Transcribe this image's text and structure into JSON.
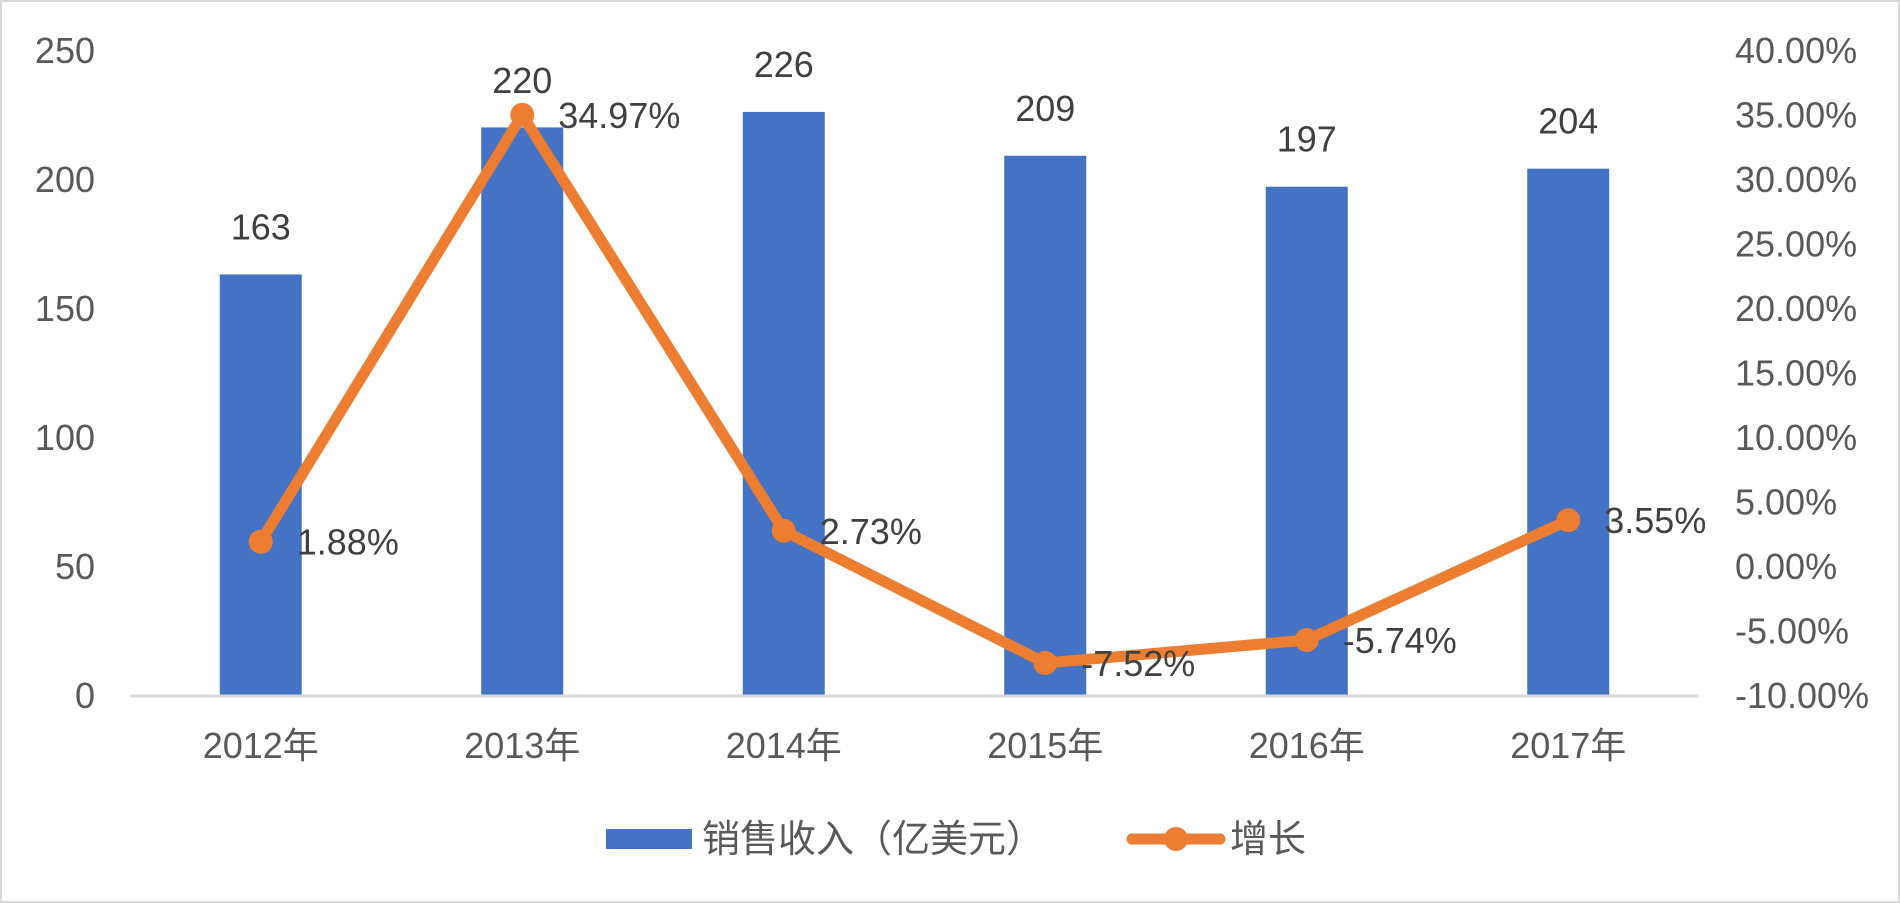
{
  "chart_data": {
    "type": "bar+line",
    "title": "",
    "categories": [
      "2012年",
      "2013年",
      "2014年",
      "2015年",
      "2016年",
      "2017年"
    ],
    "series": [
      {
        "name": "销售收入（亿美元）",
        "type": "bar",
        "axis": "left",
        "color": "#4472C4",
        "values": [
          163,
          220,
          226,
          209,
          197,
          204
        ],
        "labels": [
          "163",
          "220",
          "226",
          "209",
          "197",
          "204"
        ]
      },
      {
        "name": "增长",
        "type": "line",
        "axis": "right",
        "color": "#ED7D31",
        "values": [
          1.88,
          34.97,
          2.73,
          -7.52,
          -5.74,
          3.55
        ],
        "labels": [
          "1.88%",
          "34.97%",
          "2.73%",
          "-7.52%",
          "-5.74%",
          "3.55%"
        ]
      }
    ],
    "left_axis": {
      "min": 0,
      "max": 250,
      "step": 50,
      "ticks": [
        "0",
        "50",
        "100",
        "150",
        "200",
        "250"
      ]
    },
    "right_axis": {
      "min": -10,
      "max": 40,
      "step": 5,
      "ticks": [
        "-10.00%",
        "-5.00%",
        "0.00%",
        "5.00%",
        "10.00%",
        "15.00%",
        "20.00%",
        "25.00%",
        "30.00%",
        "35.00%",
        "40.00%"
      ]
    },
    "xlabel": "",
    "ylabel": "",
    "y2label": "",
    "grid": false,
    "legend_position": "bottom"
  },
  "legend": {
    "items": [
      {
        "label": "销售收入（亿美元）",
        "color": "#4472C4",
        "icon": "bar-swatch-icon"
      },
      {
        "label": "增长",
        "color": "#ED7D31",
        "icon": "line-marker-icon"
      }
    ]
  },
  "colors": {
    "bar": "#4472C4",
    "line": "#ED7D31",
    "axis": "#d9d9d9",
    "text": "#595959",
    "border": "#d9d9d9"
  }
}
